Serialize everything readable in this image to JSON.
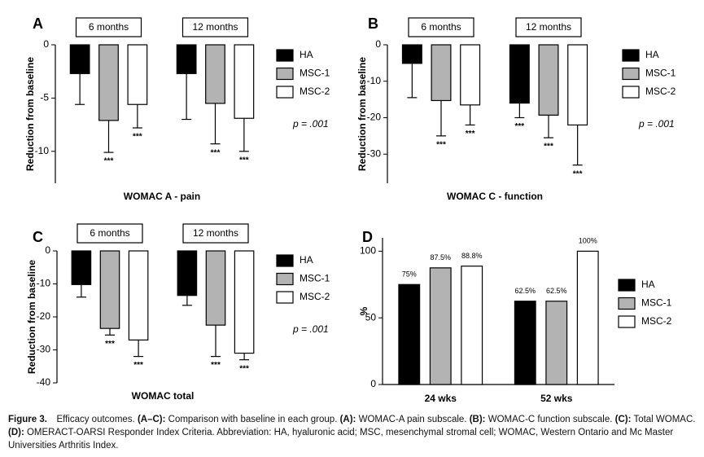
{
  "chart_data": [
    {
      "type": "bar",
      "panel": "A",
      "category_position": "top",
      "categories": [
        "6 months",
        "12 months"
      ],
      "series": [
        {
          "name": "HA",
          "color": "#000000",
          "values": [
            -2.7,
            -2.7
          ],
          "errors": [
            2.9,
            4.3
          ]
        },
        {
          "name": "MSC-1",
          "color": "#b3b3b3",
          "values": [
            -7.1,
            -5.5
          ],
          "errors": [
            3.0,
            3.8
          ],
          "significance": [
            "***",
            "***"
          ]
        },
        {
          "name": "MSC-2",
          "color": "#ffffff",
          "values": [
            -5.6,
            -6.9
          ],
          "errors": [
            2.2,
            3.1
          ],
          "significance": [
            "***",
            "***"
          ]
        }
      ],
      "ylim": [
        -13,
        0
      ],
      "yticks": [
        0,
        -5,
        -10
      ],
      "ylabel": "Reduction from baseline",
      "xlabel": "WOMAC A - pain",
      "annotation": "p = .001"
    },
    {
      "type": "bar",
      "panel": "B",
      "category_position": "top",
      "categories": [
        "6 months",
        "12 months"
      ],
      "series": [
        {
          "name": "HA",
          "color": "#000000",
          "values": [
            -5.1,
            -16
          ],
          "errors": [
            9.4,
            4
          ],
          "significance": [
            null,
            "***"
          ]
        },
        {
          "name": "MSC-1",
          "color": "#b3b3b3",
          "values": [
            -15.3,
            -19.3
          ],
          "errors": [
            9.7,
            6.2
          ],
          "significance": [
            "***",
            "***"
          ]
        },
        {
          "name": "MSC-2",
          "color": "#ffffff",
          "values": [
            -16.5,
            -22
          ],
          "errors": [
            5.5,
            11
          ],
          "significance": [
            "***",
            "***"
          ]
        }
      ],
      "ylim": [
        -38,
        0
      ],
      "yticks": [
        0,
        -10,
        -20,
        -30
      ],
      "ylabel": "Reduction from baseline",
      "xlabel": "WOMAC C - function",
      "annotation": "p = .001"
    },
    {
      "type": "bar",
      "panel": "C",
      "category_position": "top",
      "categories": [
        "6 months",
        "12 months"
      ],
      "series": [
        {
          "name": "HA",
          "color": "#000000",
          "values": [
            -10.2,
            -13.5
          ],
          "errors": [
            3.8,
            3
          ]
        },
        {
          "name": "MSC-1",
          "color": "#b3b3b3",
          "values": [
            -23.5,
            -22.5
          ],
          "errors": [
            2,
            9.5
          ],
          "significance": [
            "***",
            "***"
          ]
        },
        {
          "name": "MSC-2",
          "color": "#ffffff",
          "values": [
            -27,
            -31
          ],
          "errors": [
            5,
            2
          ],
          "significance": [
            "***",
            "***"
          ]
        }
      ],
      "ylim": [
        -40,
        0
      ],
      "yticks": [
        0,
        -10,
        -20,
        -30,
        -40
      ],
      "ylabel": "Reduction from baseline",
      "xlabel": "WOMAC total",
      "annotation": "p = .001"
    },
    {
      "type": "bar",
      "panel": "D",
      "category_position": "bottom",
      "categories": [
        "24 wks",
        "52 wks"
      ],
      "series": [
        {
          "name": "HA",
          "color": "#000000",
          "values": [
            75,
            62.5
          ],
          "value_labels": [
            "75%",
            "62.5%"
          ]
        },
        {
          "name": "MSC-1",
          "color": "#b3b3b3",
          "values": [
            87.5,
            62.5
          ],
          "value_labels": [
            "87.5%",
            "62.5%"
          ]
        },
        {
          "name": "MSC-2",
          "color": "#ffffff",
          "values": [
            88.8,
            100
          ],
          "value_labels": [
            "88.8%",
            "100%"
          ]
        }
      ],
      "ylim": [
        0,
        110
      ],
      "yticks": [
        0,
        50,
        100
      ],
      "ylabel": "%"
    }
  ],
  "caption": [
    {
      "text": "Figure 3.",
      "bold": true
    },
    {
      "text": " Efficacy outcomes. "
    },
    {
      "text": "(A–C):",
      "bold": true
    },
    {
      "text": " Comparison with baseline in each group. "
    },
    {
      "text": "(A):",
      "bold": true
    },
    {
      "text": " WOMAC-A pain subscale. "
    },
    {
      "text": "(B):",
      "bold": true
    },
    {
      "text": " WOMAC-C function subscale. "
    },
    {
      "text": "(C):",
      "bold": true
    },
    {
      "text": " Total WOMAC. "
    },
    {
      "text": "(D):",
      "bold": true
    },
    {
      "text": " OMERACT-OARSI Responder Index Criteria. Abbreviation: HA, hyaluronic acid; MSC, mesenchymal stromal cell; WOMAC, Western Ontario and Mc Master Universities Arthritis Index."
    }
  ]
}
